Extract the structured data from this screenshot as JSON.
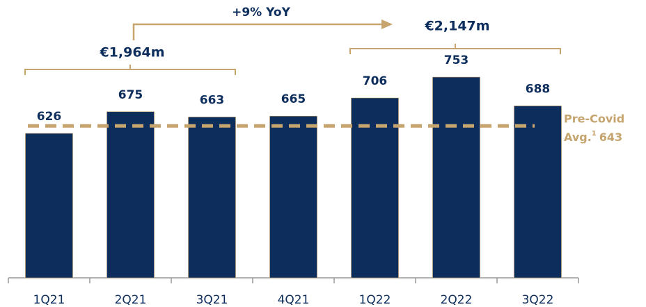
{
  "chart_data": {
    "type": "bar",
    "categories": [
      "1Q21",
      "2Q21",
      "3Q21",
      "4Q21",
      "1Q22",
      "2Q22",
      "3Q22"
    ],
    "values": [
      626,
      675,
      663,
      665,
      706,
      753,
      688
    ],
    "color": "#0d2e5c",
    "ylim": [
      300,
      880
    ],
    "reference_line": {
      "value": 643,
      "color": "#c5a46d",
      "label_lines": [
        "Pre-Covid",
        "Avg."
      ],
      "footnote": "1"
    },
    "annotations": [
      "€1,964m",
      "€2,147m",
      "+9% YoY"
    ]
  }
}
